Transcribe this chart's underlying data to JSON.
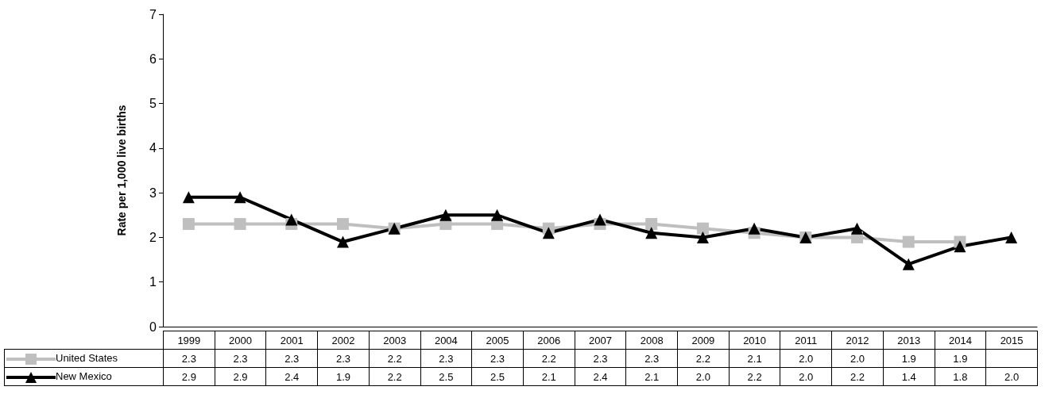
{
  "chart_data": {
    "type": "line",
    "ylabel": "Rate per 1,000 live births",
    "categories": [
      "1999",
      "2000",
      "2001",
      "2002",
      "2003",
      "2004",
      "2005",
      "2006",
      "2007",
      "2008",
      "2009",
      "2010",
      "2011",
      "2012",
      "2013",
      "2014",
      "2015"
    ],
    "series": [
      {
        "name": "United States",
        "color": "#bfbfbf",
        "marker": "square",
        "values": [
          2.3,
          2.3,
          2.3,
          2.3,
          2.2,
          2.3,
          2.3,
          2.2,
          2.3,
          2.3,
          2.2,
          2.1,
          2.0,
          2.0,
          1.9,
          1.9,
          null
        ],
        "value_labels": [
          "2.3",
          "2.3",
          "2.3",
          "2.3",
          "2.2",
          "2.3",
          "2.3",
          "2.2",
          "2.3",
          "2.3",
          "2.2",
          "2.1",
          "2.0",
          "2.0",
          "1.9",
          "1.9",
          null
        ]
      },
      {
        "name": "New Mexico",
        "color": "#000000",
        "marker": "triangle",
        "values": [
          2.9,
          2.9,
          2.4,
          1.9,
          2.2,
          2.5,
          2.5,
          2.1,
          2.4,
          2.1,
          2.0,
          2.2,
          2.0,
          2.2,
          1.4,
          1.8,
          2.0
        ],
        "value_labels": [
          "2.9",
          "2.9",
          "2.4",
          "1.9",
          "2.2",
          "2.5",
          "2.5",
          "2.1",
          "2.4",
          "2.1",
          "2.0",
          "2.2",
          "2.0",
          "2.2",
          "1.4",
          "1.8",
          "2.0"
        ]
      }
    ],
    "ylim": [
      0,
      7
    ],
    "yticks": [
      0,
      1,
      2,
      3,
      4,
      5,
      6,
      7
    ],
    "grid": false,
    "legend": "bottom left",
    "line_style": "solid"
  }
}
